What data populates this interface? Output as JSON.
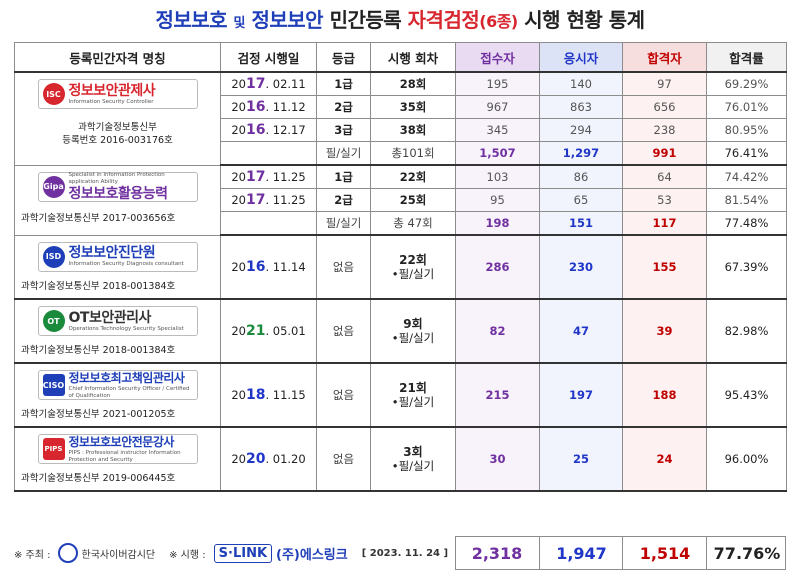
{
  "title": {
    "part1": "정보보호",
    "conj": "및",
    "part2": "정보보안",
    "part3": "민간등록",
    "part4": "자격검정",
    "part5": "(6종)",
    "part6": "시행 현황 통계"
  },
  "headers": [
    "등록민간자격 명칭",
    "검정 시행일",
    "등급",
    "시행 회차",
    "접수자",
    "응시자",
    "합격자",
    "합격률"
  ],
  "groups": [
    {
      "logo_text": "정보보안관제사",
      "logo_sub": "Information Security Controller",
      "logo_mark": "ISC",
      "logo_color": "#d8262e",
      "org": "과학기술정보통신부",
      "reg": "등록번호 2016-003176호",
      "rows": [
        {
          "y1": "20",
          "y2": "17",
          "d": ". 02.11",
          "grade": "1급",
          "rounds": "28회",
          "app": "195",
          "take": "140",
          "pass": "97",
          "rate": "69.29%"
        },
        {
          "y1": "20",
          "y2": "16",
          "d": ". 11.12",
          "grade": "2급",
          "rounds": "35회",
          "app": "967",
          "take": "863",
          "pass": "656",
          "rate": "76.01%"
        },
        {
          "y1": "20",
          "y2": "16",
          "d": ". 12.17",
          "grade": "3급",
          "rounds": "38회",
          "app": "345",
          "take": "294",
          "pass": "238",
          "rate": "80.95%"
        }
      ],
      "total": {
        "grade": "필/실기",
        "rounds": "총101회",
        "app": "1,507",
        "take": "1,297",
        "pass": "991",
        "rate": "76.41%"
      }
    },
    {
      "logo_text": "정보보호활용능력",
      "logo_sub": "Specialist in Information Protection application Ability",
      "logo_mark": "Gipa",
      "logo_color": "#7030a0",
      "org": "과학기술정보통신부 2017-003656호",
      "rows": [
        {
          "y1": "20",
          "y2": "17",
          "d": ". 11.25",
          "grade": "1급",
          "rounds": "22회",
          "app": "103",
          "take": "86",
          "pass": "64",
          "rate": "74.42%"
        },
        {
          "y1": "20",
          "y2": "17",
          "d": ". 11.25",
          "grade": "2급",
          "rounds": "25회",
          "app": "95",
          "take": "65",
          "pass": "53",
          "rate": "81.54%"
        }
      ],
      "total": {
        "grade": "필/실기",
        "rounds": "총 47회",
        "app": "198",
        "take": "151",
        "pass": "117",
        "rate": "77.48%"
      }
    },
    {
      "logo_text": "정보보안진단원",
      "logo_sub": "Information Security Diagnosis consultant",
      "logo_mark": "ISD",
      "logo_color": "#1f3fb8",
      "org": "과학기술정보통신부 2018-001384호",
      "row": {
        "y1": "20",
        "y2": "16",
        "d": ". 11.14",
        "grade": "없음",
        "rounds": "22회",
        "sub": "•필/실기",
        "app": "286",
        "take": "230",
        "pass": "155",
        "rate": "67.39%"
      }
    },
    {
      "logo_text": "OT보안관리사",
      "logo_sub": "Operations Technology Security Specialist",
      "logo_mark": "OT",
      "logo_color": "#1a8a3c",
      "org": "과학기술정보통신부 2018-001384호",
      "row": {
        "y1": "20",
        "y2": "21",
        "d": ". 05.01",
        "grade": "없음",
        "rounds": "9회",
        "sub": "•필/실기",
        "app": "82",
        "take": "47",
        "pass": "39",
        "rate": "82.98%"
      }
    },
    {
      "logo_text": "정보보호최고책임관리사",
      "logo_sub": "Chief Information Security Officer / Certified of Qualification",
      "logo_mark": "CISO",
      "logo_color": "#1f3fb8",
      "org": "과학기술정보통신부 2021-001205호",
      "row": {
        "y1": "20",
        "y2": "18",
        "d": ". 11.15",
        "grade": "없음",
        "rounds": "21회",
        "sub": "•필/실기",
        "app": "215",
        "take": "197",
        "pass": "188",
        "rate": "95.43%"
      }
    },
    {
      "logo_text": "정보보호보안전문강사",
      "logo_sub": "PIPS : Professional instructor Information Protection and Security",
      "logo_mark": "PIPS",
      "logo_color": "#d8262e",
      "org": "과학기술정보통신부 2019-006445호",
      "row": {
        "y1": "20",
        "y2": "20",
        "d": ". 01.20",
        "grade": "없음",
        "rounds": "3회",
        "sub": "•필/실기",
        "app": "30",
        "take": "25",
        "pass": "24",
        "rate": "96.00%"
      }
    }
  ],
  "footer": {
    "host_label": "※ 주최 :",
    "host_name": "한국사이버감시단",
    "runner_label": "※ 시행 :",
    "runner_brand": "S·LINK",
    "runner_name": "(주)에스링크",
    "date": "[ 2023. 11. 24 ]",
    "total_app": "2,318",
    "total_take": "1,947",
    "total_pass": "1,514",
    "total_rate": "77.76%"
  },
  "colors": {
    "purple": "#7030a0",
    "blue": "#2036c8",
    "red": "#c00000",
    "green": "#1a8a3c"
  }
}
